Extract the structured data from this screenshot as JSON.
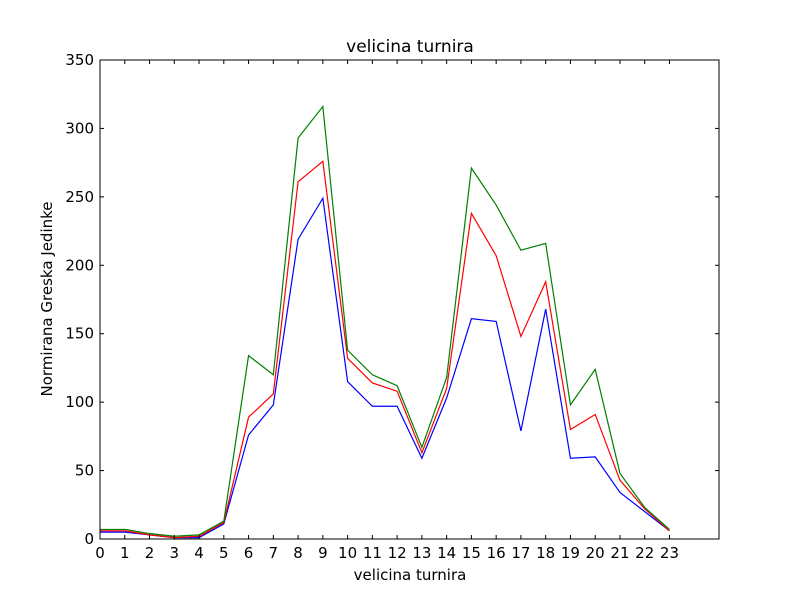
{
  "chart_data": {
    "type": "line",
    "title": "velicina turnira",
    "xlabel": "velicina turnira",
    "ylabel": "Normirana Greska Jedinke",
    "xlim": [
      0,
      25
    ],
    "ylim": [
      0,
      350
    ],
    "xticks": [
      0,
      1,
      2,
      3,
      4,
      5,
      6,
      7,
      8,
      9,
      10,
      11,
      12,
      13,
      14,
      15,
      16,
      17,
      18,
      19,
      20,
      21,
      22,
      23
    ],
    "yticks": [
      0,
      50,
      100,
      150,
      200,
      250,
      300,
      350
    ],
    "grid": false,
    "legend": "none",
    "x": [
      0,
      1,
      2,
      3,
      4,
      5,
      6,
      7,
      8,
      9,
      10,
      11,
      12,
      13,
      14,
      15,
      16,
      17,
      18,
      19,
      20,
      21,
      22,
      23
    ],
    "series": [
      {
        "color": "#0000ff",
        "values": [
          5,
          5,
          3,
          1,
          1,
          11,
          76,
          98,
          219,
          249,
          115,
          97,
          97,
          59,
          103,
          161,
          159,
          79,
          168,
          59,
          60,
          34,
          20,
          6
        ]
      },
      {
        "color": "#ff0000",
        "values": [
          6,
          6,
          3,
          1,
          2,
          12,
          89,
          106,
          261,
          276,
          132,
          114,
          108,
          63,
          110,
          238,
          207,
          148,
          188,
          80,
          91,
          43,
          22,
          6
        ]
      },
      {
        "color": "#008000",
        "values": [
          7,
          7,
          4,
          2,
          3,
          13,
          134,
          120,
          293,
          316,
          138,
          120,
          112,
          67,
          118,
          271,
          244,
          211,
          216,
          98,
          124,
          48,
          23,
          7
        ]
      }
    ]
  }
}
